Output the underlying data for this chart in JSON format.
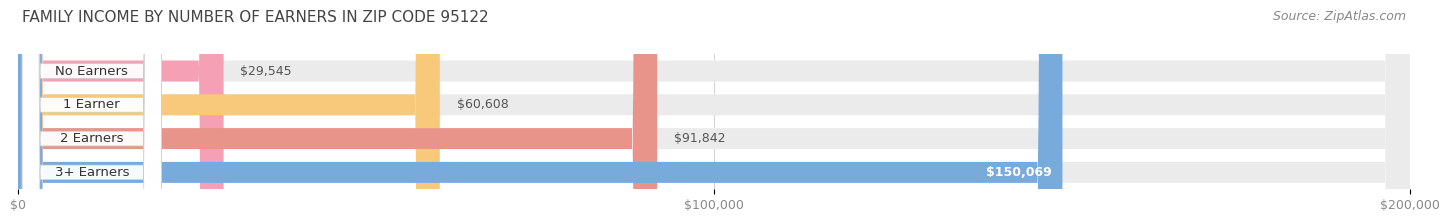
{
  "title": "FAMILY INCOME BY NUMBER OF EARNERS IN ZIP CODE 95122",
  "source": "Source: ZipAtlas.com",
  "categories": [
    "No Earners",
    "1 Earner",
    "2 Earners",
    "3+ Earners"
  ],
  "values": [
    29545,
    60608,
    91842,
    150069
  ],
  "bar_colors": [
    "#f5a0b5",
    "#f8c97a",
    "#e8948a",
    "#78aadc"
  ],
  "bar_bg_color": "#ebebeb",
  "value_labels": [
    "$29,545",
    "$60,608",
    "$91,842",
    "$150,069"
  ],
  "xmax": 200000,
  "xticks": [
    0,
    100000,
    200000
  ],
  "xtick_labels": [
    "$0",
    "$100,000",
    "$200,000"
  ],
  "background_color": "#ffffff",
  "title_fontsize": 11,
  "source_fontsize": 9,
  "bar_label_fontsize": 9.5,
  "value_fontsize": 9,
  "tick_fontsize": 9,
  "bar_height": 0.62,
  "bar_spacing": 1.0
}
